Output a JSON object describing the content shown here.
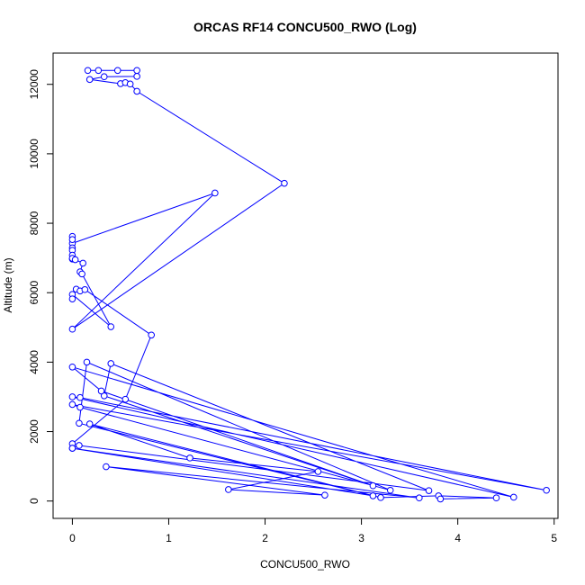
{
  "chart_data": {
    "type": "line",
    "title": "ORCAS RF14 CONCU500_RWO (Log)",
    "xlabel": "CONCU500_RWO",
    "ylabel": "Altitude (m)",
    "xlim": [
      -0.2,
      5.04
    ],
    "ylim": [
      -500,
      12900
    ],
    "x_ticks": [
      0,
      1,
      2,
      3,
      4,
      5
    ],
    "x_tick_labels": [
      "0",
      "1",
      "2",
      "3",
      "4",
      "5"
    ],
    "y_ticks": [
      0,
      2000,
      4000,
      6000,
      8000,
      10000,
      12000
    ],
    "y_tick_labels": [
      "0",
      "2000",
      "4000",
      "6000",
      "8000",
      "10000",
      "12000"
    ],
    "grid": false,
    "legend": "none",
    "marker": "open-circle",
    "series": [
      {
        "color": "#0000ff",
        "points": [
          [
            0.16,
            12400
          ],
          [
            0.27,
            12400
          ],
          [
            0.47,
            12400
          ],
          [
            0.67,
            12400
          ],
          [
            0.67,
            12230
          ],
          [
            0.33,
            12220
          ],
          [
            0.18,
            12140
          ],
          [
            0.5,
            12020
          ],
          [
            0.55,
            12050
          ],
          [
            0.6,
            12010
          ],
          [
            0.67,
            11800
          ],
          [
            2.2,
            9150
          ],
          [
            0.0,
            4950
          ],
          [
            1.48,
            8870
          ],
          [
            0.0,
            7420
          ],
          [
            0.0,
            7620
          ],
          [
            0.0,
            7530
          ],
          [
            0.0,
            7290
          ],
          [
            0.0,
            7220
          ],
          [
            0.0,
            7080
          ],
          [
            0.0,
            6970
          ],
          [
            0.0,
            6990
          ],
          [
            0.03,
            6950
          ],
          [
            0.11,
            6850
          ],
          [
            0.08,
            6600
          ],
          [
            0.1,
            6540
          ],
          [
            0.4,
            5020
          ],
          [
            0.0,
            5950
          ],
          [
            0.0,
            5820
          ],
          [
            0.04,
            6100
          ],
          [
            0.08,
            6050
          ],
          [
            0.13,
            6090
          ],
          [
            0.82,
            4780
          ],
          [
            0.55,
            2930
          ],
          [
            0.0,
            1650
          ],
          [
            0.0,
            1520
          ],
          [
            0.07,
            1600
          ],
          [
            3.7,
            300
          ],
          [
            0.4,
            3960
          ],
          [
            0.33,
            3030
          ],
          [
            3.12,
            440
          ],
          [
            0.3,
            3170
          ],
          [
            0.0,
            3860
          ],
          [
            4.58,
            110
          ],
          [
            0.0,
            3000
          ],
          [
            0.08,
            2980
          ],
          [
            4.92,
            310
          ],
          [
            0.0,
            2780
          ],
          [
            0.08,
            2700
          ],
          [
            3.3,
            310
          ],
          [
            0.15,
            4000
          ],
          [
            0.07,
            2240
          ],
          [
            3.12,
            150
          ],
          [
            0.0,
            1520
          ],
          [
            3.6,
            90
          ],
          [
            0.35,
            990
          ],
          [
            2.62,
            170
          ],
          [
            1.62,
            330
          ],
          [
            2.55,
            850
          ],
          [
            1.22,
            1240
          ],
          [
            0.18,
            2220
          ],
          [
            3.2,
            100
          ],
          [
            3.8,
            150
          ],
          [
            4.4,
            90
          ],
          [
            3.82,
            60
          ]
        ]
      }
    ]
  }
}
